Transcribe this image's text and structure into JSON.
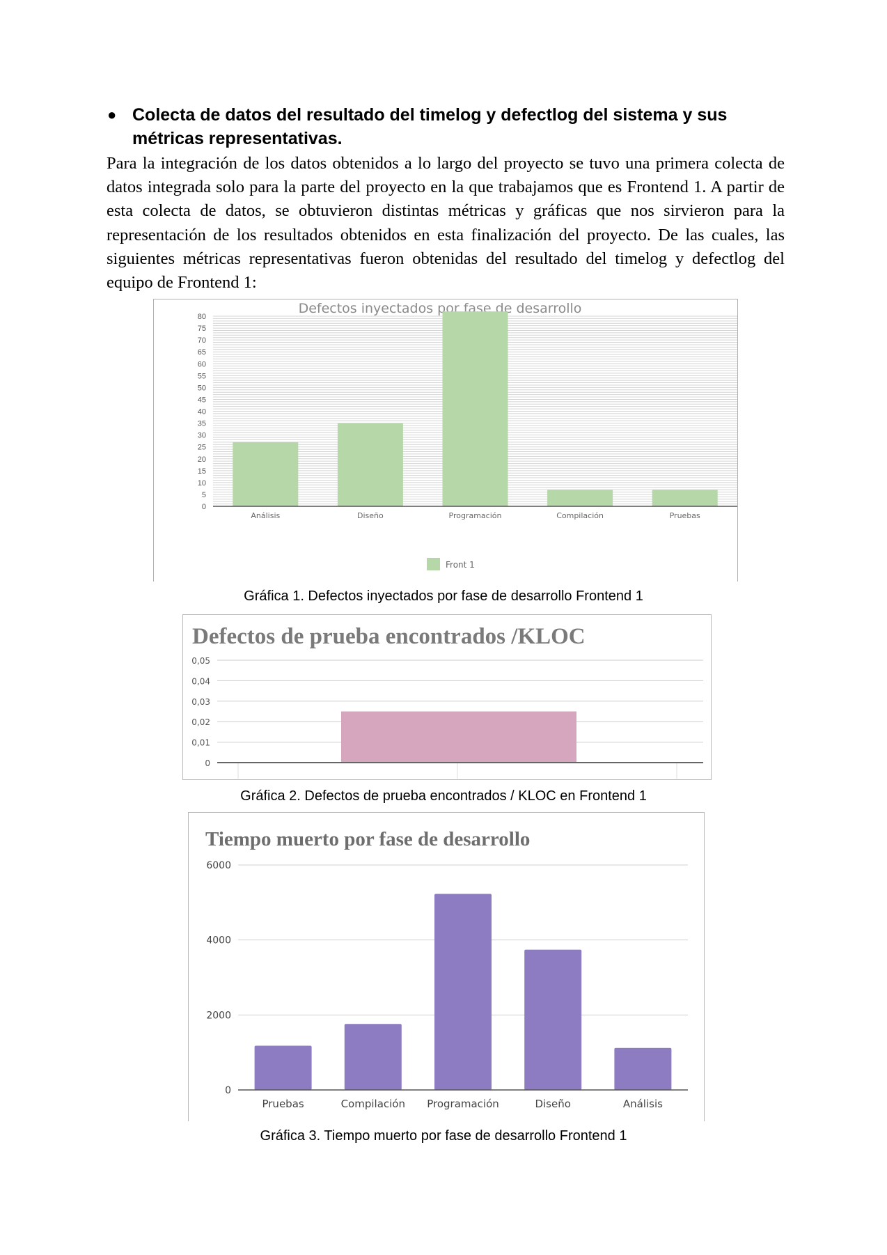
{
  "heading": {
    "bullet": "●",
    "text": "Colecta de datos del resultado del timelog y defectlog del sistema y sus métricas representativas."
  },
  "paragraph": "Para la integración de los datos obtenidos a lo largo del proyecto se tuvo una primera colecta de datos integrada solo para la parte del proyecto en la que trabajamos que es Frontend 1. A partir de esta colecta de datos, se obtuvieron distintas métricas y gráficas que nos sirvieron para la representación de los resultados obtenidos en esta finalización del proyecto. De las cuales, las siguientes métricas representativas fueron obtenidas del resultado del timelog y defectlog del equipo de Frontend 1:",
  "captions": {
    "chart1": "Gráfica 1. Defectos inyectados por fase de desarrollo Frontend 1",
    "chart2": "Gráfica 2. Defectos de prueba encontrados / KLOC en Frontend 1",
    "chart3": "Gráfica 3. Tiempo muerto por fase de desarrollo Frontend 1"
  },
  "chart_data": [
    {
      "type": "bar",
      "title": "Defectos inyectados por fase de desarrollo",
      "categories": [
        "Análisis",
        "Diseño",
        "Programación",
        "Compilación",
        "Pruebas"
      ],
      "series": [
        {
          "name": "Front 1",
          "values": [
            27,
            35,
            82,
            7,
            7
          ]
        }
      ],
      "ylim": [
        0,
        80
      ],
      "yticks": [
        0,
        5,
        10,
        15,
        20,
        25,
        30,
        35,
        40,
        45,
        50,
        55,
        60,
        65,
        70,
        75,
        80
      ],
      "grid": true,
      "legend": "bottom",
      "color": "#b6d7a8"
    },
    {
      "type": "bar",
      "title": "Defectos de prueba encontrados /KLOC",
      "categories": [
        ""
      ],
      "values": [
        0.025
      ],
      "ylim": [
        0,
        0.05
      ],
      "yticks": [
        "0",
        "0,01",
        "0,02",
        "0,03",
        "0,04",
        "0,05"
      ],
      "grid": true,
      "color": "#d5a6bd"
    },
    {
      "type": "bar",
      "title": "Tiempo muerto por fase de desarrollo",
      "categories": [
        "Pruebas",
        "Compilación",
        "Programación",
        "Diseño",
        "Análisis"
      ],
      "values": [
        1180,
        1760,
        5230,
        3740,
        1120
      ],
      "ylim": [
        0,
        6000
      ],
      "yticks": [
        "0",
        "2000",
        "4000",
        "6000"
      ],
      "grid": true,
      "color": "#8e7cc3"
    }
  ]
}
